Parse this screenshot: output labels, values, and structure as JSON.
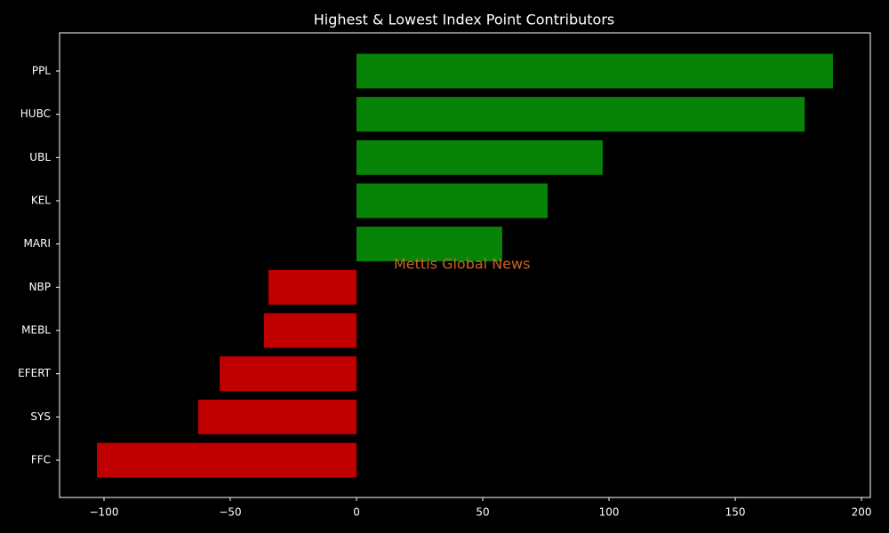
{
  "chart_data": {
    "type": "barh",
    "title": "Highest & Lowest Index Point Contributors",
    "watermark": "Mettis Global News",
    "categories": [
      "PPL",
      "HUBC",
      "UBL",
      "KEL",
      "MARI",
      "NBP",
      "MEBL",
      "EFERT",
      "SYS",
      "FFC"
    ],
    "values": [
      188.7,
      177.5,
      97.5,
      75.7,
      57.7,
      -34.9,
      -36.6,
      -54.2,
      -62.7,
      -102.8
    ],
    "colors": [
      "#078407",
      "#078407",
      "#078407",
      "#078407",
      "#078407",
      "#c00000",
      "#c00000",
      "#c00000",
      "#c00000",
      "#c00000"
    ],
    "xlim": [
      -117.6,
      203.5
    ],
    "xticks": [
      {
        "value": -100,
        "label": "−100"
      },
      {
        "value": -50,
        "label": "−50"
      },
      0,
      50,
      100,
      150,
      200
    ]
  }
}
